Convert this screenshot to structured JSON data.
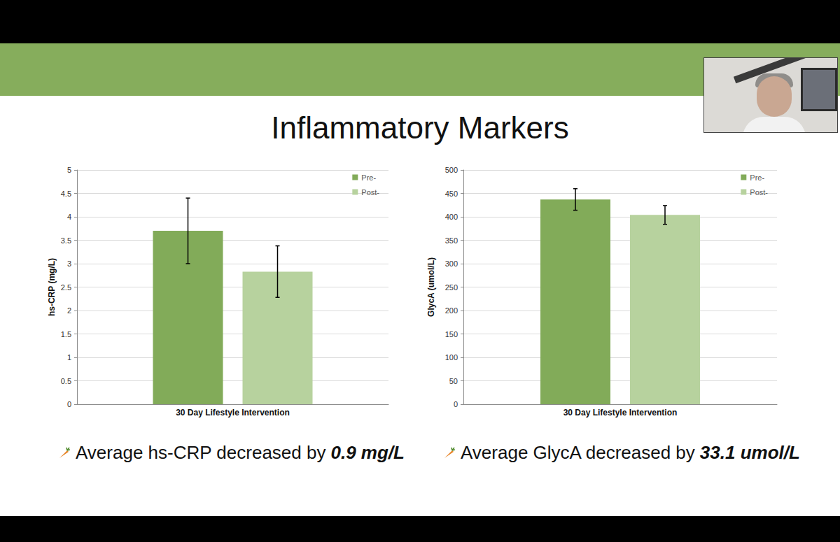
{
  "title": "Inflammatory Markers",
  "chart_data": [
    {
      "type": "bar",
      "y_label": "hs-CRP (mg/L)",
      "categories": [
        "30 Day Lifestyle Intervention"
      ],
      "series": [
        {
          "name": "Pre-",
          "color": "#82ab59",
          "values": [
            3.7
          ],
          "errors": [
            0.7
          ]
        },
        {
          "name": "Post-",
          "color": "#b7d29e",
          "values": [
            2.83
          ],
          "errors": [
            0.55
          ]
        }
      ],
      "ylim": [
        0,
        5
      ],
      "yticks": [
        0,
        0.5,
        1,
        1.5,
        2,
        2.5,
        3,
        3.5,
        4,
        4.5,
        5
      ],
      "grid": true,
      "legend": "top-right",
      "annotation": [
        "Average hs-CRP decreased by",
        "0.9 mg/L"
      ]
    },
    {
      "type": "bar",
      "y_label": "GlycA (umol/L)",
      "categories": [
        "30 Day Lifestyle Intervention"
      ],
      "series": [
        {
          "name": "Pre-",
          "color": "#82ab59",
          "values": [
            437
          ],
          "errors": [
            23
          ]
        },
        {
          "name": "Post-",
          "color": "#b7d29e",
          "values": [
            404
          ],
          "errors": [
            20
          ]
        }
      ],
      "ylim": [
        0,
        500
      ],
      "yticks": [
        0,
        50,
        100,
        150,
        200,
        250,
        300,
        350,
        400,
        450,
        500
      ],
      "grid": true,
      "legend": "top-right",
      "annotation": [
        "Average GlycA decreased by",
        "33.1 umol/L"
      ]
    }
  ]
}
